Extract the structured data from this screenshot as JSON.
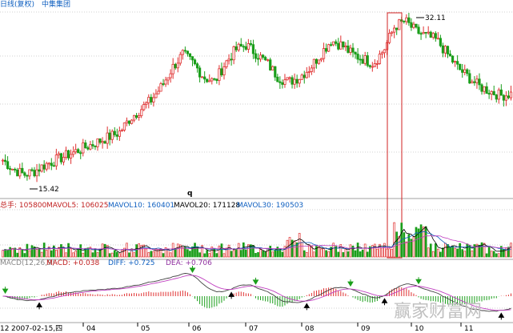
{
  "header": {
    "line_type": "日线(复权)",
    "stock_name": "中集集团"
  },
  "price_panel": {
    "high_label": "32.11",
    "low_label": "15.42",
    "marker_q": "q"
  },
  "volume_panel": {
    "total_label": "总手: 105800",
    "mavol5_label": "MAVOL5: 106025",
    "mavol10_label": "MAVOL10: 160401",
    "mavol20_label": "MAVOL20: 171128",
    "mavol30_label": "MAVOL30: 190503"
  },
  "macd_panel": {
    "name": "MACD(12,26,9)",
    "macd_label": "MACD: +0.038",
    "diff_label": "DIFF: +0.725",
    "dea_label": "DEA: +0.706"
  },
  "x_axis": {
    "start_date": "2007-02-15,四",
    "months": [
      "04",
      "05",
      "06",
      "07",
      "08",
      "09",
      "10",
      "11"
    ],
    "left_cut": "12"
  },
  "watermark": "赢家财富网",
  "colors": {
    "up": "#e03030",
    "down": "#1a9e1a",
    "grid": "#d0d0d0",
    "highlight": "#d02020",
    "accent_blue": "#1060c0"
  },
  "chart_data": {
    "type": "candlestick",
    "title": "中集集团 日线(复权)",
    "price_range": [
      13,
      33
    ],
    "annotated_high": 32.11,
    "annotated_low": 15.42,
    "x_categories": [
      "04",
      "05",
      "06",
      "07",
      "08",
      "09",
      "10",
      "11"
    ],
    "price_path": [
      17,
      16,
      15.42,
      15.8,
      16.5,
      17,
      17.5,
      18,
      18.5,
      19,
      19.5,
      20,
      21.5,
      22.5,
      23.5,
      25,
      27,
      28.5,
      27.5,
      26,
      25.5,
      27.5,
      29,
      29.5,
      28.5,
      27.5,
      26,
      25.5,
      26,
      27,
      28.5,
      30,
      29.5,
      28.5,
      28,
      27.5,
      29,
      31.5,
      32.11,
      31,
      30.5,
      30,
      28.5,
      27,
      26,
      25,
      24.5,
      24,
      24.2
    ],
    "macd_params": [
      12,
      26,
      9
    ],
    "macd": 0.038,
    "diff": 0.725,
    "dea": 0.706,
    "mavol": {
      "MAVOL5": 106025,
      "MAVOL10": 160401,
      "MAVOL20": 171128,
      "MAVOL30": 190503
    },
    "volume_last": 105800
  }
}
